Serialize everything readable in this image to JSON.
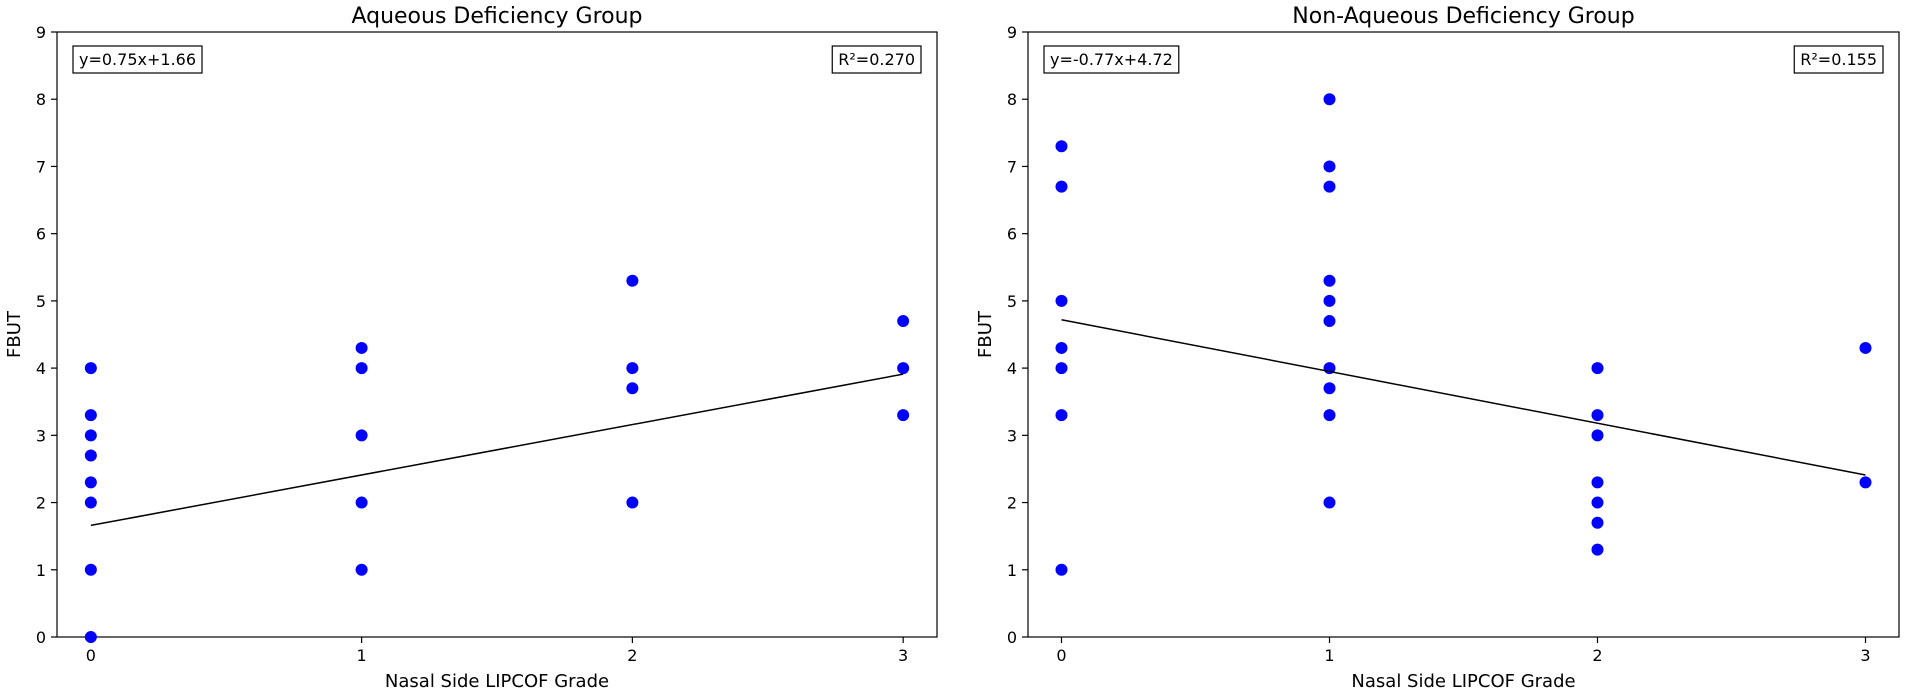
{
  "chart_data": [
    {
      "type": "scatter",
      "title": "Aqueous Deficiency Group",
      "xlabel": "Nasal Side LIPCOF Grade",
      "ylabel": "FBUT",
      "xlim": [
        -0.125,
        3.125
      ],
      "ylim": [
        0,
        9
      ],
      "xticks": [
        "0",
        "1",
        "2",
        "3"
      ],
      "yticks": [
        "0",
        "1",
        "2",
        "3",
        "4",
        "5",
        "6",
        "7",
        "8",
        "9"
      ],
      "grid": false,
      "point_color": "#0000ff",
      "line_color": "#000000",
      "points": [
        {
          "x": 0,
          "y": 0
        },
        {
          "x": 0,
          "y": 1
        },
        {
          "x": 0,
          "y": 2
        },
        {
          "x": 0,
          "y": 2.3
        },
        {
          "x": 0,
          "y": 2.7
        },
        {
          "x": 0,
          "y": 3
        },
        {
          "x": 0,
          "y": 3.3
        },
        {
          "x": 0,
          "y": 4
        },
        {
          "x": 1,
          "y": 1
        },
        {
          "x": 1,
          "y": 2
        },
        {
          "x": 1,
          "y": 3
        },
        {
          "x": 1,
          "y": 4
        },
        {
          "x": 1,
          "y": 4.3
        },
        {
          "x": 2,
          "y": 2
        },
        {
          "x": 2,
          "y": 3.7
        },
        {
          "x": 2,
          "y": 4
        },
        {
          "x": 2,
          "y": 5.3
        },
        {
          "x": 3,
          "y": 3.3
        },
        {
          "x": 3,
          "y": 4
        },
        {
          "x": 3,
          "y": 4.7
        }
      ],
      "fit": {
        "slope": 0.75,
        "intercept": 1.66,
        "x_range": [
          0,
          3
        ]
      },
      "equation_label": "y=0.75x+1.66",
      "r2_label": "R²=0.270"
    },
    {
      "type": "scatter",
      "title": "Non-Aqueous Deficiency Group",
      "xlabel": "Nasal Side LIPCOF Grade",
      "ylabel": "FBUT",
      "xlim": [
        -0.125,
        3.125
      ],
      "ylim": [
        0,
        9
      ],
      "xticks": [
        "0",
        "1",
        "2",
        "3"
      ],
      "yticks": [
        "0",
        "1",
        "2",
        "3",
        "4",
        "5",
        "6",
        "7",
        "8",
        "9"
      ],
      "grid": false,
      "point_color": "#0000ff",
      "line_color": "#000000",
      "points": [
        {
          "x": 0,
          "y": 1
        },
        {
          "x": 0,
          "y": 3.3
        },
        {
          "x": 0,
          "y": 4
        },
        {
          "x": 0,
          "y": 4.3
        },
        {
          "x": 0,
          "y": 5
        },
        {
          "x": 0,
          "y": 6.7
        },
        {
          "x": 0,
          "y": 7.3
        },
        {
          "x": 1,
          "y": 2
        },
        {
          "x": 1,
          "y": 3.3
        },
        {
          "x": 1,
          "y": 3.7
        },
        {
          "x": 1,
          "y": 4
        },
        {
          "x": 1,
          "y": 4.7
        },
        {
          "x": 1,
          "y": 5
        },
        {
          "x": 1,
          "y": 5.3
        },
        {
          "x": 1,
          "y": 6.7
        },
        {
          "x": 1,
          "y": 7
        },
        {
          "x": 1,
          "y": 8
        },
        {
          "x": 2,
          "y": 1.3
        },
        {
          "x": 2,
          "y": 1.7
        },
        {
          "x": 2,
          "y": 2
        },
        {
          "x": 2,
          "y": 2.3
        },
        {
          "x": 2,
          "y": 3
        },
        {
          "x": 2,
          "y": 3.3
        },
        {
          "x": 2,
          "y": 4
        },
        {
          "x": 3,
          "y": 2.3
        },
        {
          "x": 3,
          "y": 4.3
        }
      ],
      "fit": {
        "slope": -0.77,
        "intercept": 4.72,
        "x_range": [
          0,
          3
        ]
      },
      "equation_label": "y=-0.77x+4.72",
      "r2_label": "R²=0.155"
    }
  ]
}
